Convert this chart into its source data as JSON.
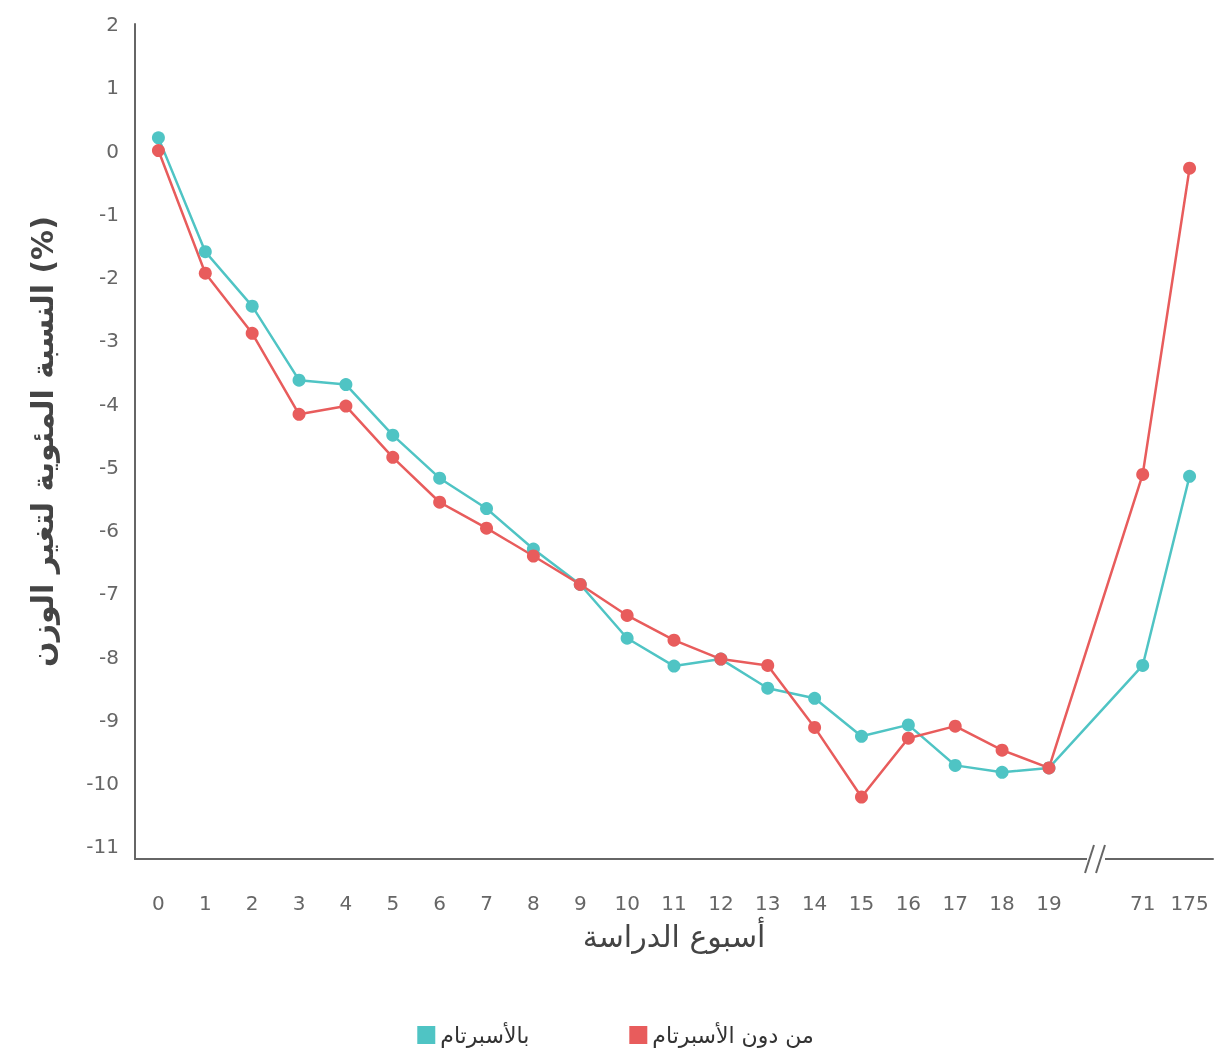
{
  "chart_data": {
    "type": "line",
    "xlabel": "أسبوع الدراسة",
    "ylabel": "النسبة المئوية لتغير الوزن (%)",
    "categories": [
      "0",
      "1",
      "2",
      "3",
      "4",
      "5",
      "6",
      "7",
      "8",
      "9",
      "10",
      "11",
      "12",
      "13",
      "14",
      "15",
      "16",
      "17",
      "18",
      "19",
      null,
      "71",
      "175"
    ],
    "series": [
      {
        "name": "بالأسبرتام",
        "color": "#4fc4c4",
        "values": [
          0.2,
          -1.6,
          -2.46,
          -3.63,
          -3.7,
          -4.5,
          -5.18,
          -5.66,
          -6.3,
          -6.86,
          -7.71,
          -8.15,
          -8.04,
          -8.5,
          -8.66,
          -9.26,
          -9.08,
          -9.72,
          -9.83,
          -9.76,
          null,
          -8.14,
          -5.15
        ]
      },
      {
        "name": "من دون الأسبرتام",
        "color": "#e85c5c",
        "values": [
          0,
          -1.94,
          -2.89,
          -4.17,
          -4.04,
          -4.85,
          -5.56,
          -5.97,
          -6.41,
          -6.86,
          -7.35,
          -7.74,
          -8.04,
          -8.14,
          -9.12,
          -10.22,
          -9.29,
          -9.1,
          -9.48,
          -9.76,
          null,
          -5.12,
          -0.28
        ]
      }
    ],
    "ylim": [
      -11.2,
      2
    ],
    "yticks": [
      -11,
      -10,
      -9,
      -8,
      -7,
      -6,
      -5,
      -4,
      -3,
      -2,
      -1,
      0,
      1,
      2
    ],
    "grid": false,
    "legend": "bottom",
    "marker": "circle",
    "line_style": "solid"
  }
}
